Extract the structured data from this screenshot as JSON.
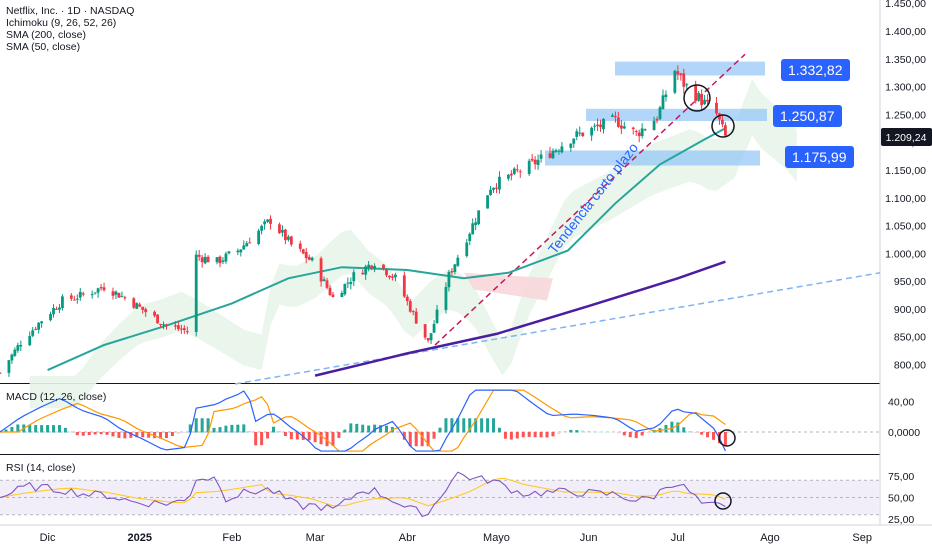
{
  "header": {
    "title": "Netflix, Inc. · 1D · NASDAQ",
    "indicators": [
      "Ichimoku (9, 26, 52, 26)",
      "SMA (200, close)",
      "SMA (50, close)"
    ]
  },
  "price_axis": {
    "ticks": [
      "1.450,00",
      "1.400,00",
      "1.350,00",
      "1.300,00",
      "1.250,00",
      "1.200,00",
      "1.150,00",
      "1.100,00",
      "1.050,00",
      "1.000,00",
      "950,00",
      "900,00",
      "850,00",
      "800,00"
    ],
    "last_price_label": "1.209,24"
  },
  "time_axis": {
    "ticks": [
      "Dic",
      "2025",
      "Feb",
      "Mar",
      "Abr",
      "Mayo",
      "Jun",
      "Jul",
      "Ago",
      "Sep"
    ]
  },
  "annotations": {
    "levels": [
      "1.332,82",
      "1.250,87",
      "1.175,99"
    ],
    "trend_text": "Tendencia corto plazo"
  },
  "macd": {
    "title": "MACD (12, 26, close)",
    "ticks": [
      "40,00",
      "0,0000"
    ]
  },
  "rsi": {
    "title": "RSI (14, close)",
    "ticks": [
      "75,00",
      "50,00",
      "25,00"
    ]
  },
  "colors": {
    "up": "#089981",
    "down": "#f23645",
    "sma50": "#26a69a",
    "sma200": "#4a1ea0",
    "trend_dash": "#c2185b",
    "long_dash": "#7fb3f5",
    "level_box": "#90c4f6",
    "label_blue": "#2962ff",
    "cloud": "#e8f5e9",
    "macd_line": "#2962ff",
    "signal_line": "#ff9800",
    "rsi_line": "#7e57c2",
    "rsi_band": "#ede7f6"
  },
  "chart_data": {
    "type": "candlestick",
    "title": "Netflix, Inc. · 1D · NASDAQ",
    "x_range": [
      "2024-11-15",
      "2025-09-07"
    ],
    "ylim": [
      780,
      1470
    ],
    "closes": [
      {
        "date": "2024-11-15",
        "close": 785
      },
      {
        "date": "2024-11-22",
        "close": 840
      },
      {
        "date": "2024-11-29",
        "close": 880
      },
      {
        "date": "2024-12-06",
        "close": 915
      },
      {
        "date": "2024-12-13",
        "close": 925
      },
      {
        "date": "2024-12-20",
        "close": 940
      },
      {
        "date": "2024-12-27",
        "close": 920
      },
      {
        "date": "2025-01-03",
        "close": 895
      },
      {
        "date": "2025-01-10",
        "close": 870
      },
      {
        "date": "2025-01-17",
        "close": 860
      },
      {
        "date": "2025-01-20",
        "close": 995
      },
      {
        "date": "2025-01-27",
        "close": 985
      },
      {
        "date": "2025-02-03",
        "close": 1005
      },
      {
        "date": "2025-02-10",
        "close": 1040
      },
      {
        "date": "2025-02-14",
        "close": 1060
      },
      {
        "date": "2025-02-21",
        "close": 1015
      },
      {
        "date": "2025-02-28",
        "close": 985
      },
      {
        "date": "2025-03-07",
        "close": 920
      },
      {
        "date": "2025-03-14",
        "close": 960
      },
      {
        "date": "2025-03-21",
        "close": 985
      },
      {
        "date": "2025-03-28",
        "close": 955
      },
      {
        "date": "2025-04-04",
        "close": 880
      },
      {
        "date": "2025-04-08",
        "close": 840
      },
      {
        "date": "2025-04-15",
        "close": 960
      },
      {
        "date": "2025-04-22",
        "close": 1040
      },
      {
        "date": "2025-04-29",
        "close": 1120
      },
      {
        "date": "2025-05-06",
        "close": 1140
      },
      {
        "date": "2025-05-13",
        "close": 1160
      },
      {
        "date": "2025-05-20",
        "close": 1185
      },
      {
        "date": "2025-05-27",
        "close": 1210
      },
      {
        "date": "2025-06-03",
        "close": 1225
      },
      {
        "date": "2025-06-10",
        "close": 1240
      },
      {
        "date": "2025-06-17",
        "close": 1215
      },
      {
        "date": "2025-06-24",
        "close": 1245
      },
      {
        "date": "2025-06-30",
        "close": 1330
      },
      {
        "date": "2025-07-03",
        "close": 1305
      },
      {
        "date": "2025-07-10",
        "close": 1270
      },
      {
        "date": "2025-07-14",
        "close": 1250
      },
      {
        "date": "2025-07-17",
        "close": 1209.24
      }
    ],
    "levels": [
      1332.82,
      1250.87,
      1175.99
    ],
    "sma50": [
      {
        "date": "2024-12-01",
        "value": 790
      },
      {
        "date": "2024-12-20",
        "value": 835
      },
      {
        "date": "2025-01-10",
        "value": 870
      },
      {
        "date": "2025-02-01",
        "value": 910
      },
      {
        "date": "2025-02-20",
        "value": 955
      },
      {
        "date": "2025-03-10",
        "value": 975
      },
      {
        "date": "2025-04-01",
        "value": 970
      },
      {
        "date": "2025-04-20",
        "value": 955
      },
      {
        "date": "2025-05-05",
        "value": 965
      },
      {
        "date": "2025-05-25",
        "value": 1005
      },
      {
        "date": "2025-06-10",
        "value": 1090
      },
      {
        "date": "2025-06-25",
        "value": 1160
      },
      {
        "date": "2025-07-10",
        "value": 1205
      },
      {
        "date": "2025-07-17",
        "value": 1225
      }
    ],
    "sma200": [
      {
        "date": "2025-03-01",
        "value": 780
      },
      {
        "date": "2025-04-01",
        "value": 820
      },
      {
        "date": "2025-05-01",
        "value": 855
      },
      {
        "date": "2025-06-01",
        "value": 905
      },
      {
        "date": "2025-07-01",
        "value": 955
      },
      {
        "date": "2025-07-17",
        "value": 985
      }
    ],
    "macd": {
      "ylim": [
        -25,
        60
      ],
      "last_hist": -5
    },
    "rsi": {
      "ylim": [
        20,
        85
      ],
      "last_value": 52
    }
  }
}
